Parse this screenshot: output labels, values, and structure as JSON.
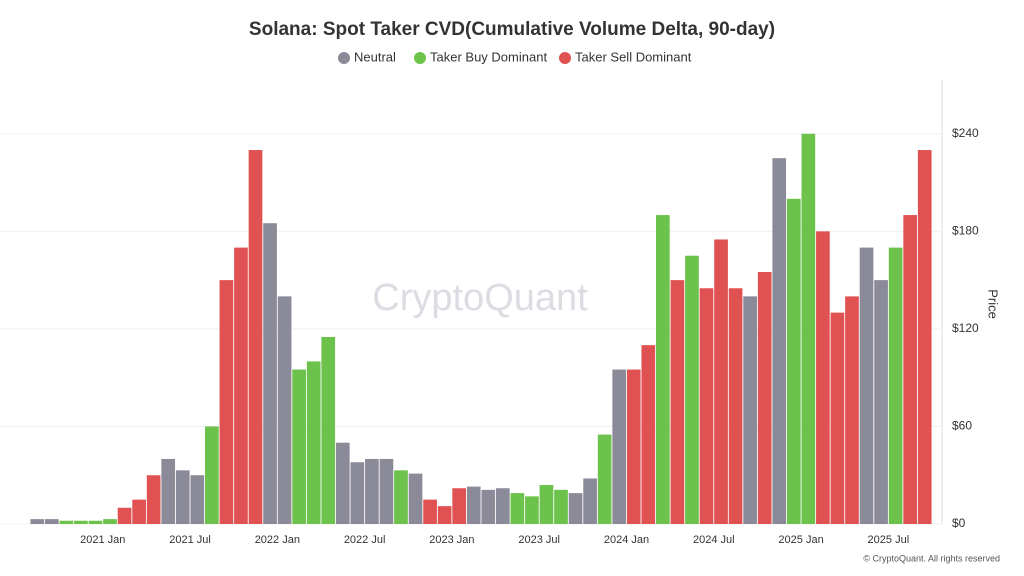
{
  "chart_data": {
    "type": "bar",
    "title": "Solana: Spot Taker CVD(Cumulative Volume Delta, 90-day)",
    "y_axis_label": "Price",
    "watermark": "CryptoQuant",
    "footer": "© CryptoQuant. All rights reserved",
    "x": [
      "2020-08",
      "2020-09",
      "2020-10",
      "2020-11",
      "2020-12",
      "2021-01",
      "2021-02",
      "2021-03",
      "2021-04",
      "2021-05",
      "2021-06",
      "2021-07",
      "2021-08",
      "2021-09",
      "2021-10",
      "2021-11",
      "2021-12",
      "2022-01",
      "2022-02",
      "2022-03",
      "2022-04",
      "2022-05",
      "2022-06",
      "2022-07",
      "2022-08",
      "2022-09",
      "2022-10",
      "2022-11",
      "2022-12",
      "2023-01",
      "2023-02",
      "2023-03",
      "2023-04",
      "2023-05",
      "2023-06",
      "2023-07",
      "2023-08",
      "2023-09",
      "2023-10",
      "2023-11",
      "2023-12",
      "2024-01",
      "2024-02",
      "2024-03",
      "2024-04",
      "2024-05",
      "2024-06",
      "2024-07",
      "2024-08",
      "2024-09",
      "2024-10",
      "2024-11",
      "2024-12",
      "2025-01",
      "2025-02",
      "2025-03",
      "2025-04",
      "2025-05",
      "2025-06",
      "2025-07",
      "2025-08",
      "2025-09"
    ],
    "series": [
      {
        "name": "Neutral",
        "color": "#8b8a99",
        "values": [
          3,
          3,
          null,
          null,
          null,
          null,
          null,
          null,
          null,
          40,
          33,
          30,
          null,
          null,
          null,
          null,
          185,
          140,
          null,
          null,
          null,
          50,
          38,
          40,
          40,
          null,
          31,
          null,
          null,
          null,
          23,
          21,
          22,
          null,
          null,
          null,
          null,
          19,
          28,
          null,
          95,
          null,
          null,
          null,
          null,
          null,
          null,
          null,
          null,
          140,
          null,
          225,
          null,
          null,
          null,
          null,
          null,
          170,
          150,
          null,
          null,
          null
        ]
      },
      {
        "name": "Taker Buy Dominant",
        "color": "#6cc24a",
        "values": [
          null,
          null,
          2,
          2,
          2,
          3,
          null,
          null,
          null,
          null,
          null,
          null,
          60,
          null,
          null,
          null,
          null,
          null,
          95,
          100,
          115,
          null,
          null,
          null,
          null,
          33,
          null,
          null,
          null,
          null,
          null,
          null,
          null,
          19,
          17,
          24,
          21,
          null,
          null,
          55,
          null,
          null,
          null,
          190,
          null,
          165,
          null,
          null,
          null,
          null,
          null,
          null,
          200,
          240,
          null,
          null,
          null,
          null,
          null,
          170,
          null,
          null
        ]
      },
      {
        "name": "Taker Sell Dominant",
        "color": "#e05252",
        "values": [
          null,
          null,
          null,
          null,
          null,
          null,
          10,
          15,
          30,
          null,
          null,
          null,
          null,
          150,
          170,
          230,
          null,
          null,
          null,
          null,
          null,
          null,
          null,
          null,
          null,
          null,
          null,
          15,
          11,
          22,
          null,
          null,
          null,
          null,
          null,
          null,
          null,
          null,
          null,
          null,
          null,
          95,
          110,
          null,
          150,
          null,
          145,
          175,
          145,
          null,
          155,
          null,
          null,
          null,
          180,
          130,
          140,
          null,
          null,
          null,
          190,
          230
        ]
      }
    ],
    "xticks": [
      {
        "value": "2021-01",
        "label": "2021 Jan"
      },
      {
        "value": "2021-07",
        "label": "2021 Jul"
      },
      {
        "value": "2022-01",
        "label": "2022 Jan"
      },
      {
        "value": "2022-07",
        "label": "2022 Jul"
      },
      {
        "value": "2023-01",
        "label": "2023 Jan"
      },
      {
        "value": "2023-07",
        "label": "2023 Jul"
      },
      {
        "value": "2024-01",
        "label": "2024 Jan"
      },
      {
        "value": "2024-07",
        "label": "2024 Jul"
      },
      {
        "value": "2025-01",
        "label": "2025 Jan"
      },
      {
        "value": "2025-07",
        "label": "2025 Jul"
      }
    ],
    "ylim": [
      0,
      270
    ],
    "yticks": [
      {
        "value": 0,
        "label": "$0"
      },
      {
        "value": 60,
        "label": "$60"
      },
      {
        "value": 120,
        "label": "$120"
      },
      {
        "value": 180,
        "label": "$180"
      },
      {
        "value": 240,
        "label": "$240"
      }
    ],
    "grid": true
  }
}
